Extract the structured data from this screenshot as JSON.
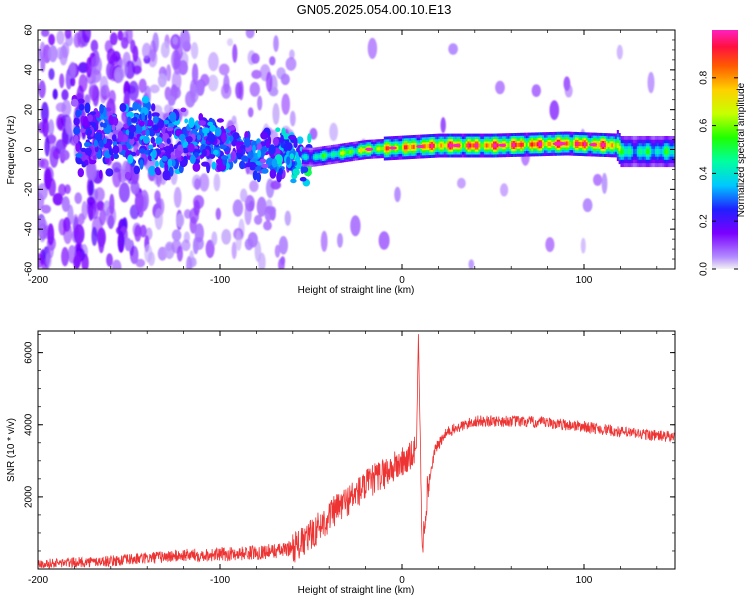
{
  "title": "GN05.2025.054.00.10.E13",
  "chart_data": [
    {
      "type": "heatmap",
      "xlabel": "Height of straight line (km)",
      "ylabel": "Frequency (Hz)",
      "xlim": [
        -200,
        150
      ],
      "ylim": [
        -60,
        60
      ],
      "xticks": [
        "-200",
        "-100",
        "0",
        "100"
      ],
      "xtick_values": [
        -200,
        -100,
        0,
        100
      ],
      "yticks": [
        "-60",
        "-40",
        "-20",
        "0",
        "20",
        "40",
        "60"
      ],
      "ytick_values": [
        -60,
        -40,
        -20,
        0,
        20,
        40,
        60
      ],
      "colorbar": {
        "label": "Normalized spectral amplitude",
        "range": [
          0,
          1
        ],
        "ticks": [
          "0.0",
          "0.2",
          "0.4",
          "0.6",
          "0.8"
        ],
        "tick_values": [
          0,
          0.2,
          0.4,
          0.6,
          0.8
        ]
      },
      "ridge": [
        {
          "x": -170,
          "freq": 7,
          "amp": 0.25
        },
        {
          "x": -150,
          "freq": 6,
          "amp": 0.3
        },
        {
          "x": -130,
          "freq": 5,
          "amp": 0.3
        },
        {
          "x": -110,
          "freq": 4,
          "amp": 0.3
        },
        {
          "x": -95,
          "freq": 1,
          "amp": 0.3
        },
        {
          "x": -80,
          "freq": -2,
          "amp": 0.3
        },
        {
          "x": -65,
          "freq": -3,
          "amp": 0.35
        },
        {
          "x": -50,
          "freq": -4,
          "amp": 0.45
        },
        {
          "x": -35,
          "freq": -2,
          "amp": 0.6
        },
        {
          "x": -20,
          "freq": 0,
          "amp": 0.75
        },
        {
          "x": 0,
          "freq": 1,
          "amp": 0.85
        },
        {
          "x": 20,
          "freq": 2,
          "amp": 0.95
        },
        {
          "x": 50,
          "freq": 2,
          "amp": 0.97
        },
        {
          "x": 90,
          "freq": 3,
          "amp": 0.97
        },
        {
          "x": 118,
          "freq": 2,
          "amp": 0.95
        },
        {
          "x": 120,
          "freq": -1,
          "amp": 0.5
        },
        {
          "x": 150,
          "freq": -1,
          "amp": 0.5
        }
      ]
    },
    {
      "type": "line",
      "xlabel": "Height of straight line (km)",
      "ylabel": "SNR (10 * v/v)",
      "xlim": [
        -200,
        150
      ],
      "ylim": [
        0,
        6600
      ],
      "xticks": [
        "-200",
        "-100",
        "0",
        "100"
      ],
      "xtick_values": [
        -200,
        -100,
        0,
        100
      ],
      "yticks": [
        "2000",
        "4000",
        "6000"
      ],
      "ytick_values": [
        2000,
        4000,
        6000
      ],
      "series": [
        {
          "color": "#ee3333",
          "x": [
            -200,
            -180,
            -160,
            -140,
            -120,
            -100,
            -80,
            -65,
            -55,
            -45,
            -35,
            -25,
            -15,
            -5,
            5,
            8,
            9,
            11,
            14,
            18,
            25,
            40,
            60,
            80,
            100,
            120,
            150
          ],
          "y": [
            150,
            180,
            220,
            300,
            380,
            400,
            460,
            520,
            700,
            1200,
            1700,
            2100,
            2500,
            2800,
            3100,
            3400,
            6600,
            500,
            2200,
            3300,
            3800,
            4100,
            4100,
            4050,
            3950,
            3800,
            3650
          ]
        }
      ]
    }
  ]
}
